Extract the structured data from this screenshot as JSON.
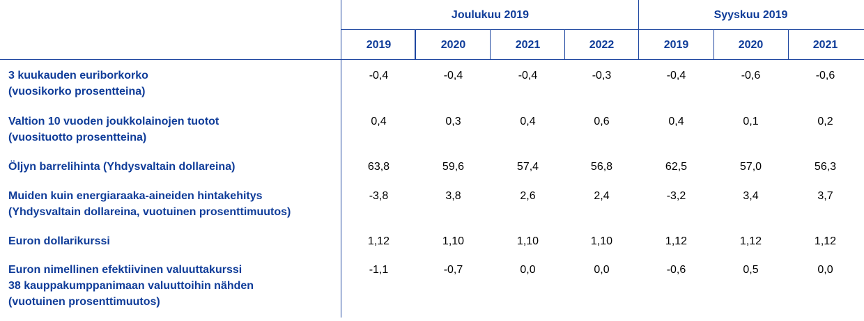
{
  "header": {
    "groups": [
      {
        "label": "Joulukuu 2019",
        "years": [
          "2019",
          "2020",
          "2021",
          "2022"
        ]
      },
      {
        "label": "Syyskuu 2019",
        "years": [
          "2019",
          "2020",
          "2021"
        ]
      }
    ]
  },
  "rows": [
    {
      "label": "3 kuukauden euriborkorko\n(vuosikorko prosentteina)",
      "values": [
        "-0,4",
        "-0,4",
        "-0,4",
        "-0,3",
        "-0,4",
        "-0,6",
        "-0,6"
      ]
    },
    {
      "label": "Valtion 10 vuoden joukkolainojen tuotot\n(vuosituotto prosentteina)",
      "values": [
        "0,4",
        "0,3",
        "0,4",
        "0,6",
        "0,4",
        "0,1",
        "0,2"
      ]
    },
    {
      "label": "Öljyn barrelihinta (Yhdysvaltain dollareina)",
      "values": [
        "63,8",
        "59,6",
        "57,4",
        "56,8",
        "62,5",
        "57,0",
        "56,3"
      ]
    },
    {
      "label": "Muiden kuin energiaraaka-aineiden hintakehitys\n(Yhdysvaltain dollareina, vuotuinen prosenttimuutos)",
      "values": [
        "-3,8",
        "3,8",
        "2,6",
        "2,4",
        "-3,2",
        "3,4",
        "3,7"
      ]
    },
    {
      "label": "Euron dollarikurssi",
      "values": [
        "1,12",
        "1,10",
        "1,10",
        "1,10",
        "1,12",
        "1,12",
        "1,12"
      ]
    },
    {
      "label": "Euron nimellinen efektiivinen valuuttakurssi\n38 kauppakumppanimaan valuuttoihin nähden\n(vuotuinen prosenttimuutos)",
      "values": [
        "-1,1",
        "-0,7",
        "0,0",
        "0,0",
        "-0,6",
        "0,5",
        "0,0"
      ]
    }
  ]
}
